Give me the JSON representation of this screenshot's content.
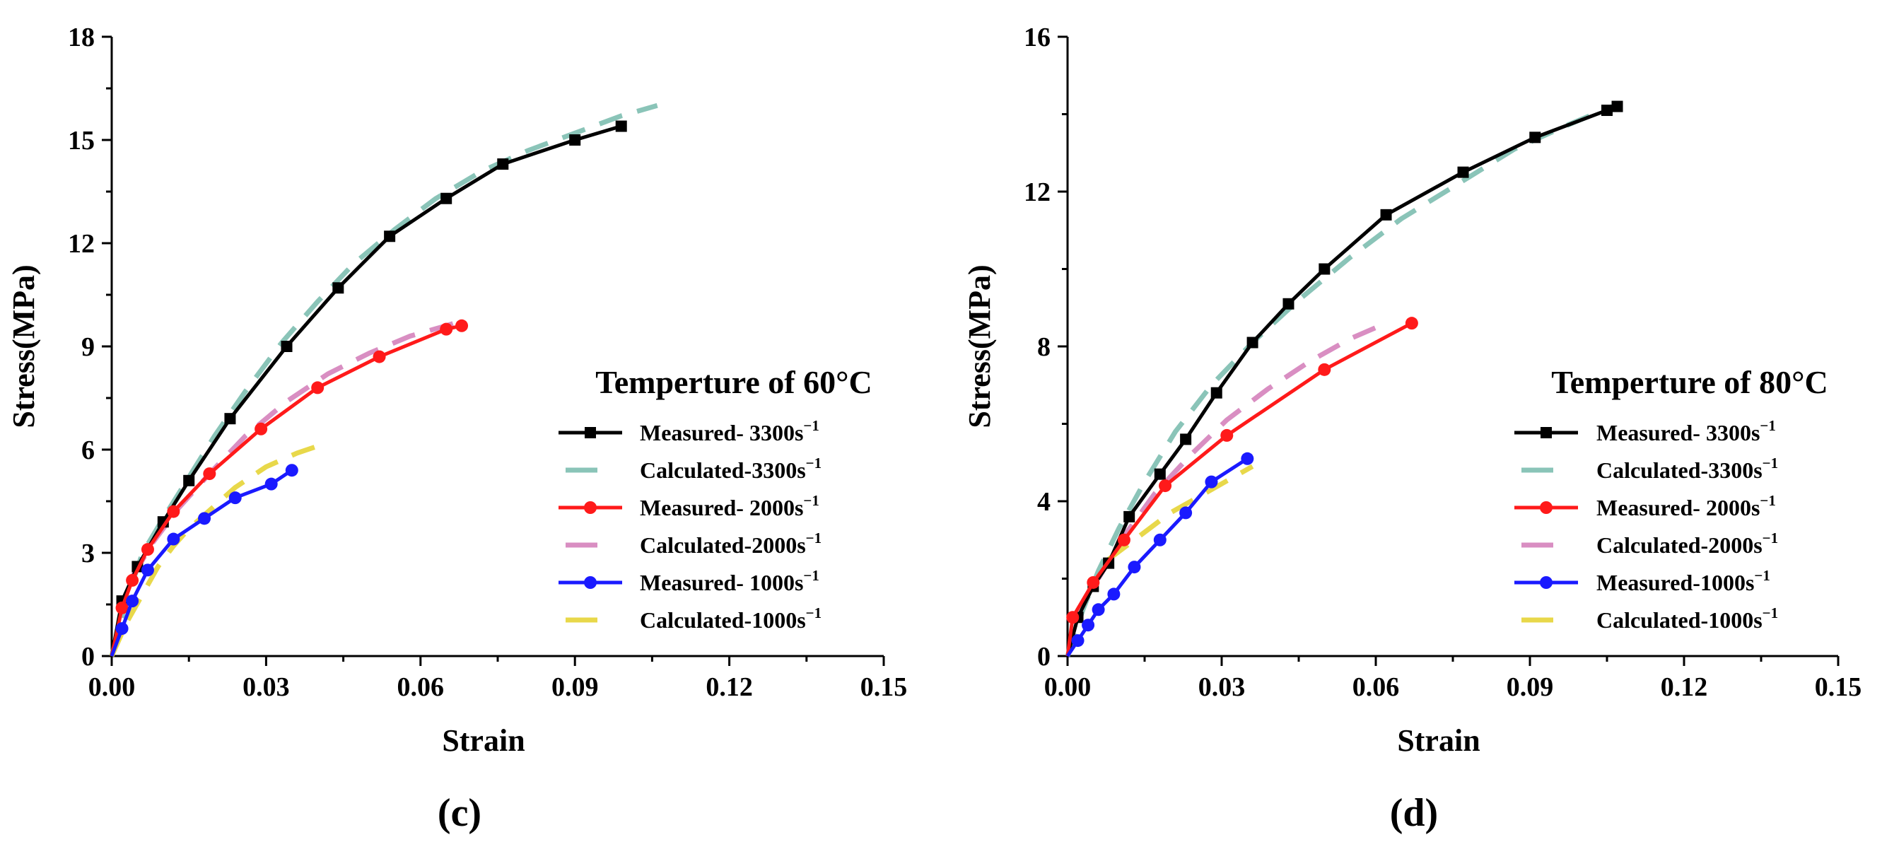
{
  "chart_data": [
    {
      "type": "line",
      "panel_label": "(c)",
      "xlabel": "Strain",
      "ylabel": "Stress(MPa)",
      "xlim": [
        0,
        0.15
      ],
      "ylim": [
        0,
        18
      ],
      "xticks": [
        "0.00",
        "0.03",
        "0.06",
        "0.09",
        "0.12",
        "0.15"
      ],
      "yticks": [
        "0",
        "3",
        "6",
        "9",
        "12",
        "15",
        "18"
      ],
      "legend_title": "Temperture of 60°C",
      "legend_position": "center-right",
      "series": [
        {
          "name": "Measured- 3300s",
          "superscript": "−1",
          "color": "#000000",
          "style": "solid",
          "marker": "square",
          "x": [
            0,
            0.002,
            0.005,
            0.01,
            0.015,
            0.023,
            0.034,
            0.044,
            0.054,
            0.065,
            0.076,
            0.09,
            0.099
          ],
          "y": [
            0,
            1.6,
            2.6,
            3.9,
            5.1,
            6.9,
            9.0,
            10.7,
            12.2,
            13.3,
            14.3,
            15.0,
            15.4
          ]
        },
        {
          "name": "Calculated-3300s",
          "superscript": "−1",
          "color": "#8ac4b8",
          "style": "dash",
          "marker": "none",
          "x": [
            0,
            0.003,
            0.006,
            0.01,
            0.015,
            0.02,
            0.026,
            0.033,
            0.04,
            0.047,
            0.055,
            0.063,
            0.072,
            0.081,
            0.09,
            0.099,
            0.106
          ],
          "y": [
            0,
            1.7,
            3.0,
            4.0,
            5.2,
            6.4,
            7.7,
            9.1,
            10.3,
            11.4,
            12.4,
            13.3,
            14.1,
            14.7,
            15.2,
            15.7,
            16.0
          ]
        },
        {
          "name": "Measured- 2000s",
          "superscript": "−1",
          "color": "#ff1a1a",
          "style": "solid",
          "marker": "circle",
          "x": [
            0,
            0.002,
            0.004,
            0.007,
            0.012,
            0.019,
            0.029,
            0.04,
            0.052,
            0.065,
            0.068
          ],
          "y": [
            0,
            1.4,
            2.2,
            3.1,
            4.2,
            5.3,
            6.6,
            7.8,
            8.7,
            9.5,
            9.6
          ]
        },
        {
          "name": "Calculated-2000s",
          "superscript": "−1",
          "color": "#d98ec2",
          "style": "dash",
          "marker": "none",
          "x": [
            0.004,
            0.008,
            0.013,
            0.019,
            0.026,
            0.034,
            0.042,
            0.05,
            0.058,
            0.065,
            0.069
          ],
          "y": [
            2.3,
            3.3,
            4.3,
            5.3,
            6.4,
            7.4,
            8.2,
            8.8,
            9.3,
            9.6,
            9.8
          ]
        },
        {
          "name": "Measured- 1000s",
          "superscript": "−1",
          "color": "#1a1aff",
          "style": "solid",
          "marker": "circle",
          "x": [
            0,
            0.002,
            0.004,
            0.007,
            0.012,
            0.018,
            0.024,
            0.031,
            0.035
          ],
          "y": [
            0,
            0.8,
            1.6,
            2.5,
            3.4,
            4.0,
            4.6,
            5.0,
            5.4
          ]
        },
        {
          "name": "Calculated-1000s",
          "superscript": "−1",
          "color": "#e8d84a",
          "style": "dash",
          "marker": "none",
          "x": [
            0,
            0.003,
            0.006,
            0.009,
            0.012,
            0.015,
            0.018,
            0.021,
            0.024,
            0.027,
            0.03,
            0.033,
            0.036,
            0.04
          ],
          "y": [
            0,
            1.0,
            1.8,
            2.6,
            3.2,
            3.7,
            4.1,
            4.5,
            4.9,
            5.2,
            5.5,
            5.7,
            5.9,
            6.1
          ]
        }
      ]
    },
    {
      "type": "line",
      "panel_label": "(d)",
      "xlabel": "Strain",
      "ylabel": "Stress(MPa)",
      "xlim": [
        0,
        0.15
      ],
      "ylim": [
        0,
        16
      ],
      "xticks": [
        "0.00",
        "0.03",
        "0.06",
        "0.09",
        "0.12",
        "0.15"
      ],
      "yticks": [
        "0",
        "4",
        "8",
        "12",
        "16"
      ],
      "legend_title": "Temperture of 80°C",
      "legend_position": "center-right",
      "series": [
        {
          "name": "Measured- 3300s",
          "superscript": "−1",
          "color": "#000000",
          "style": "solid",
          "marker": "square",
          "x": [
            0,
            0.002,
            0.005,
            0.008,
            0.012,
            0.018,
            0.023,
            0.029,
            0.036,
            0.043,
            0.05,
            0.062,
            0.077,
            0.091,
            0.105,
            0.107
          ],
          "y": [
            0,
            1.0,
            1.8,
            2.4,
            3.6,
            4.7,
            5.6,
            6.8,
            8.1,
            9.1,
            10.0,
            11.4,
            12.5,
            13.4,
            14.1,
            14.2
          ]
        },
        {
          "name": "Calculated-3300s",
          "superscript": "−1",
          "color": "#8ac4b8",
          "style": "dash",
          "marker": "none",
          "x": [
            0,
            0.003,
            0.006,
            0.01,
            0.015,
            0.021,
            0.028,
            0.036,
            0.045,
            0.055,
            0.065,
            0.076,
            0.087,
            0.097,
            0.106
          ],
          "y": [
            0,
            1.2,
            2.2,
            3.3,
            4.5,
            5.8,
            7.0,
            8.1,
            9.2,
            10.3,
            11.3,
            12.2,
            13.1,
            13.7,
            14.2
          ]
        },
        {
          "name": "Measured- 2000s",
          "superscript": "−1",
          "color": "#ff1a1a",
          "style": "solid",
          "marker": "circle",
          "x": [
            0,
            0.001,
            0.005,
            0.011,
            0.019,
            0.031,
            0.05,
            0.067
          ],
          "y": [
            0,
            1.0,
            1.9,
            3.0,
            4.4,
            5.7,
            7.4,
            8.6
          ]
        },
        {
          "name": "Calculated-2000s",
          "superscript": "−1",
          "color": "#d98ec2",
          "style": "dash",
          "marker": "none",
          "x": [
            0.006,
            0.011,
            0.017,
            0.024,
            0.031,
            0.039,
            0.047,
            0.055,
            0.062
          ],
          "y": [
            2.0,
            3.1,
            4.2,
            5.2,
            6.1,
            6.9,
            7.6,
            8.2,
            8.6
          ]
        },
        {
          "name": "Measured-1000s",
          "superscript": "−1",
          "color": "#1a1aff",
          "style": "solid",
          "marker": "circle",
          "x": [
            0,
            0.002,
            0.004,
            0.006,
            0.009,
            0.013,
            0.018,
            0.023,
            0.028,
            0.035
          ],
          "y": [
            0,
            0.4,
            0.8,
            1.2,
            1.6,
            2.3,
            3.0,
            3.7,
            4.5,
            5.1
          ]
        },
        {
          "name": "Calculated-1000s",
          "superscript": "−1",
          "color": "#e8d84a",
          "style": "dash",
          "marker": "none",
          "x": [
            0.008,
            0.012,
            0.016,
            0.02,
            0.024,
            0.028,
            0.032,
            0.036
          ],
          "y": [
            2.5,
            2.9,
            3.3,
            3.7,
            4.0,
            4.3,
            4.6,
            4.9
          ]
        }
      ]
    }
  ]
}
